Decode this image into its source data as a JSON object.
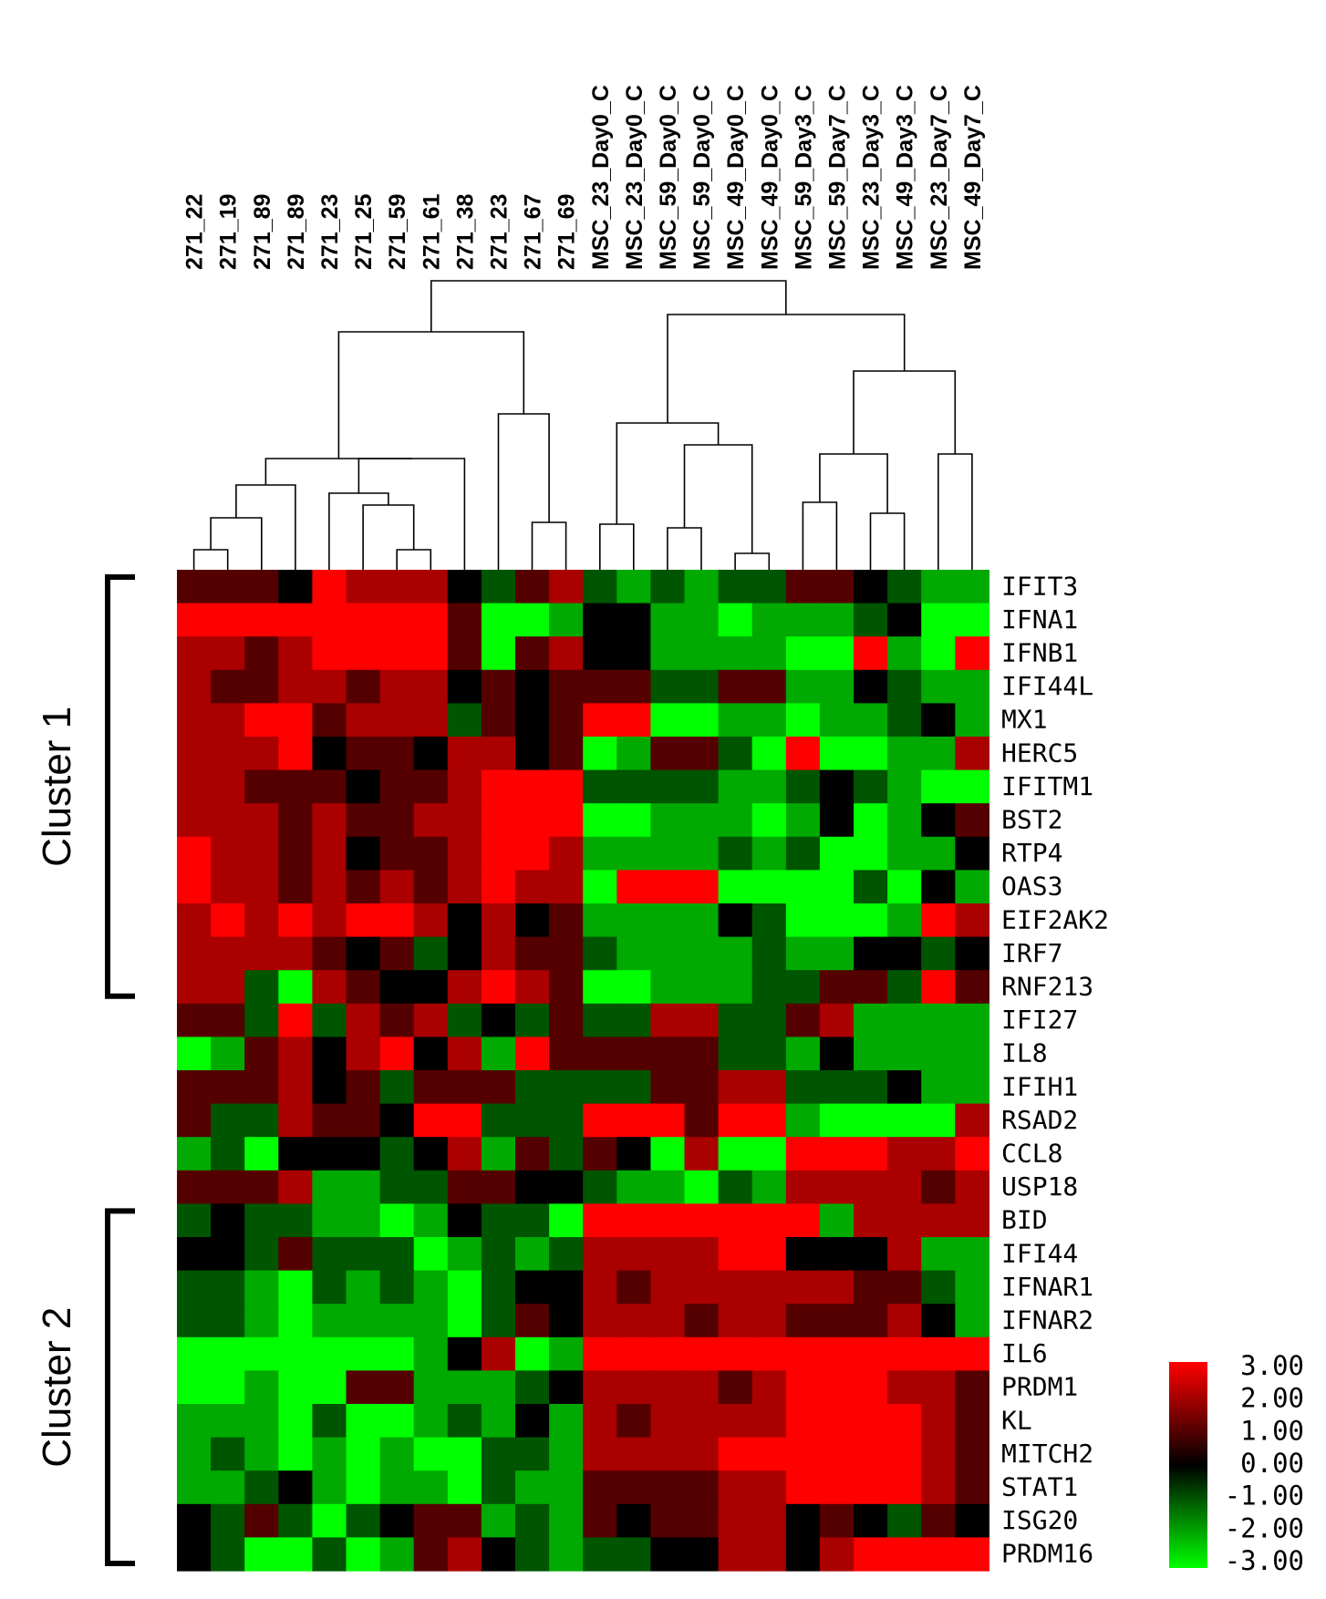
{
  "chart_data": {
    "type": "heatmap",
    "columns": [
      "271_22",
      "271_19",
      "271_89",
      "271_89",
      "271_23",
      "271_25",
      "271_59",
      "271_61",
      "271_38",
      "271_23",
      "271_67",
      "271_69",
      "MSC_23_Day0_C",
      "MSC_23_Day0_C",
      "MSC_59_Day0_C",
      "MSC_59_Day0_C",
      "MSC_49_Day0_C",
      "MSC_49_Day0_C",
      "MSC_59_Day3_C",
      "MSC_59_Day7_C",
      "MSC_23_Day3_C",
      "MSC_49_Day3_C",
      "MSC_23_Day7_C",
      "MSC_49_Day7_C"
    ],
    "rows": [
      "IFIT3",
      "IFNA1",
      "IFNB1",
      "IFI44L",
      "MX1",
      "HERC5",
      "IFITM1",
      "BST2",
      "RTP4",
      "OAS3",
      "EIF2AK2",
      "IRF7",
      "RNF213",
      "IFI27",
      "IL8",
      "IFIH1",
      "RSAD2",
      "CCL8",
      "USP18",
      "BID",
      "IFI44",
      "IFNAR1",
      "IFNAR2",
      "IL6",
      "PRDM1",
      "KL",
      "MITCH2",
      "STAT1",
      "ISG20",
      "PRDM16"
    ],
    "values": [
      [
        1,
        1,
        1,
        0,
        3,
        2,
        2,
        2,
        0,
        -1,
        1,
        2,
        -1,
        -2,
        -1,
        -2,
        -1,
        -1,
        1,
        1,
        0,
        -1,
        -2,
        -2
      ],
      [
        3,
        3,
        3,
        3,
        3,
        3,
        3,
        3,
        1,
        -3,
        -3,
        -2,
        0,
        0,
        -2,
        -2,
        -3,
        -2,
        -2,
        -2,
        -1,
        0,
        -3,
        -3
      ],
      [
        2,
        2,
        1,
        2,
        3,
        3,
        3,
        3,
        1,
        -3,
        1,
        2,
        0,
        0,
        -2,
        -2,
        -2,
        -2,
        -3,
        -3,
        3,
        -2,
        -3,
        3
      ],
      [
        2,
        1,
        1,
        2,
        2,
        1,
        2,
        2,
        0,
        1,
        0,
        1,
        1,
        1,
        -1,
        -1,
        1,
        1,
        -2,
        -2,
        0,
        -1,
        -2,
        -2
      ],
      [
        2,
        2,
        3,
        3,
        1,
        2,
        2,
        2,
        -1,
        1,
        0,
        1,
        3,
        3,
        -3,
        -3,
        -2,
        -2,
        -3,
        -2,
        -2,
        -1,
        0,
        -2
      ],
      [
        2,
        2,
        2,
        3,
        0,
        1,
        1,
        0,
        2,
        2,
        0,
        1,
        -3,
        -2,
        1,
        1,
        -1,
        -3,
        3,
        -3,
        -3,
        -2,
        -2,
        2
      ],
      [
        2,
        2,
        1,
        1,
        1,
        0,
        1,
        1,
        2,
        3,
        3,
        3,
        -1,
        -1,
        -1,
        -1,
        -2,
        -2,
        -1,
        0,
        -1,
        -2,
        -3,
        -3
      ],
      [
        2,
        2,
        2,
        1,
        2,
        1,
        1,
        2,
        2,
        3,
        3,
        3,
        -3,
        -3,
        -2,
        -2,
        -2,
        -3,
        -2,
        0,
        -3,
        -2,
        0,
        1
      ],
      [
        3,
        2,
        2,
        1,
        2,
        0,
        1,
        1,
        2,
        3,
        3,
        2,
        -2,
        -2,
        -2,
        -2,
        -1,
        -2,
        -1,
        -3,
        -3,
        -2,
        -2,
        0
      ],
      [
        3,
        2,
        2,
        1,
        2,
        1,
        2,
        1,
        2,
        3,
        2,
        2,
        -3,
        3,
        3,
        3,
        -3,
        -3,
        -3,
        -3,
        -1,
        -3,
        0,
        -2
      ],
      [
        2,
        3,
        2,
        3,
        2,
        3,
        3,
        2,
        0,
        2,
        0,
        1,
        -2,
        -2,
        -2,
        -2,
        0,
        -1,
        -3,
        -3,
        -3,
        -2,
        3,
        2
      ],
      [
        2,
        2,
        2,
        2,
        1,
        0,
        1,
        -1,
        0,
        2,
        1,
        1,
        -1,
        -2,
        -2,
        -2,
        -2,
        -1,
        -2,
        -2,
        0,
        0,
        -1,
        0
      ],
      [
        2,
        2,
        -1,
        -3,
        2,
        1,
        0,
        0,
        2,
        3,
        2,
        1,
        -3,
        -3,
        -2,
        -2,
        -2,
        -1,
        -1,
        1,
        1,
        -1,
        3,
        1
      ],
      [
        1,
        1,
        -1,
        3,
        -1,
        2,
        1,
        2,
        -1,
        0,
        -1,
        1,
        -1,
        -1,
        2,
        2,
        -1,
        -1,
        1,
        2,
        -2,
        -2,
        -2,
        -2
      ],
      [
        -3,
        -2,
        1,
        2,
        0,
        2,
        3,
        0,
        2,
        -2,
        3,
        1,
        1,
        1,
        1,
        1,
        -1,
        -1,
        -2,
        0,
        -2,
        -2,
        -2,
        -2
      ],
      [
        1,
        1,
        1,
        2,
        0,
        1,
        -1,
        1,
        1,
        1,
        -1,
        -1,
        -1,
        -1,
        1,
        1,
        2,
        2,
        -1,
        -1,
        -1,
        0,
        -2,
        -2
      ],
      [
        1,
        -1,
        -1,
        2,
        1,
        1,
        0,
        3,
        3,
        -1,
        -1,
        -1,
        3,
        3,
        3,
        1,
        3,
        3,
        -2,
        -3,
        -3,
        -3,
        -3,
        2
      ],
      [
        -2,
        -1,
        -3,
        0,
        0,
        0,
        -1,
        0,
        2,
        -2,
        1,
        -1,
        1,
        0,
        -3,
        2,
        -3,
        -3,
        3,
        3,
        3,
        2,
        2,
        3
      ],
      [
        1,
        1,
        1,
        2,
        -2,
        -2,
        -1,
        -1,
        1,
        1,
        0,
        0,
        -1,
        -2,
        -2,
        -3,
        -1,
        -2,
        2,
        2,
        2,
        2,
        1,
        2
      ],
      [
        -1,
        0,
        -1,
        -1,
        -2,
        -2,
        -3,
        -2,
        0,
        -1,
        -1,
        -3,
        3,
        3,
        3,
        3,
        3,
        3,
        3,
        -2,
        2,
        2,
        2,
        2
      ],
      [
        0,
        0,
        -1,
        1,
        -1,
        -1,
        -1,
        -3,
        -2,
        -1,
        -2,
        -1,
        2,
        2,
        2,
        2,
        3,
        3,
        0,
        0,
        0,
        2,
        -2,
        -2
      ],
      [
        -1,
        -1,
        -2,
        -3,
        -1,
        -2,
        -1,
        -2,
        -3,
        -1,
        0,
        0,
        2,
        1,
        2,
        2,
        2,
        2,
        2,
        2,
        1,
        1,
        -1,
        -2
      ],
      [
        -1,
        -1,
        -2,
        -3,
        -2,
        -2,
        -2,
        -2,
        -3,
        -1,
        1,
        0,
        2,
        2,
        2,
        1,
        2,
        2,
        1,
        1,
        1,
        2,
        0,
        -2
      ],
      [
        -3,
        -3,
        -3,
        -3,
        -3,
        -3,
        -3,
        -2,
        0,
        2,
        -3,
        -2,
        3,
        3,
        3,
        3,
        3,
        3,
        3,
        3,
        3,
        3,
        3,
        3
      ],
      [
        -3,
        -3,
        -2,
        -3,
        -3,
        1,
        1,
        -2,
        -2,
        -2,
        -1,
        0,
        2,
        2,
        2,
        2,
        1,
        2,
        3,
        3,
        3,
        2,
        2,
        1
      ],
      [
        -2,
        -2,
        -2,
        -3,
        -1,
        -3,
        -3,
        -2,
        -1,
        -2,
        0,
        -2,
        2,
        1,
        2,
        2,
        2,
        2,
        3,
        3,
        3,
        3,
        2,
        1
      ],
      [
        -2,
        -1,
        -2,
        -3,
        -2,
        -3,
        -2,
        -3,
        -3,
        -1,
        -1,
        -2,
        2,
        2,
        2,
        2,
        3,
        3,
        3,
        3,
        3,
        3,
        2,
        1
      ],
      [
        -2,
        -2,
        -1,
        0,
        -2,
        -3,
        -2,
        -2,
        -3,
        -1,
        -2,
        -2,
        1,
        1,
        1,
        1,
        2,
        2,
        3,
        3,
        3,
        3,
        2,
        1
      ],
      [
        0,
        -1,
        1,
        -1,
        -3,
        -1,
        0,
        1,
        1,
        -2,
        -1,
        -2,
        1,
        0,
        1,
        1,
        2,
        2,
        0,
        1,
        0,
        -1,
        1,
        0
      ],
      [
        0,
        -1,
        -3,
        -3,
        -1,
        -3,
        -2,
        1,
        2,
        0,
        -1,
        -2,
        -1,
        -1,
        0,
        0,
        2,
        2,
        0,
        2,
        3,
        3,
        3,
        3
      ]
    ],
    "scale": {
      "min": -3,
      "max": 3
    },
    "legend": {
      "ticks": [
        "3.00",
        "2.00",
        "1.00",
        "0.00",
        "-1.00",
        "-2.00",
        "-3.00"
      ],
      "placement": "bottom-right"
    },
    "clusters": [
      {
        "label": "Cluster 1"
      },
      {
        "label": "Cluster 2"
      }
    ],
    "colors": {
      "low": "#00ff00",
      "mid": "#000000",
      "high": "#ff0000"
    },
    "column_dendrogram": true
  }
}
